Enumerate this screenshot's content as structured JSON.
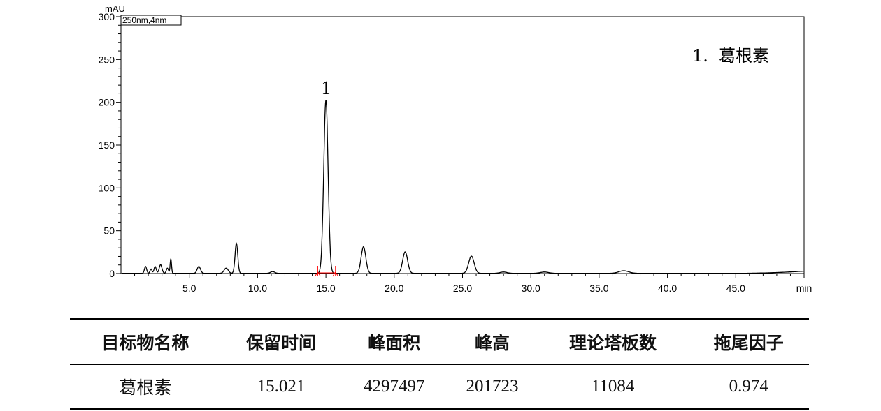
{
  "chart_data": {
    "type": "line",
    "ylabel": "mAU",
    "xlabel": "min",
    "channel": "250nm,4nm",
    "xlim": [
      0,
      50
    ],
    "ylim": [
      0,
      300
    ],
    "xticks": [
      5.0,
      10.0,
      15.0,
      20.0,
      25.0,
      30.0,
      35.0,
      40.0,
      45.0,
      50.0
    ],
    "xtick_labels": [
      "5.0",
      "10.0",
      "15.0",
      "20.0",
      "25.0",
      "30.0",
      "35.0",
      "40.0",
      "45.0",
      "min"
    ],
    "yticks": [
      0,
      50,
      100,
      150,
      200,
      250,
      300
    ],
    "ytick_labels": [
      "0",
      "50",
      "100",
      "150",
      "200",
      "250",
      "300"
    ],
    "grid": false,
    "legend_text": "1.  葛根素",
    "legend_position": "top-right",
    "peak_label": "1",
    "peak_label_rt": 15.0,
    "line_color": "#000000",
    "marker_color": "#ff0000",
    "integration_markers": [
      14.4,
      15.7
    ],
    "peaks": [
      {
        "rt": 1.8,
        "height": 8,
        "width": 0.08
      },
      {
        "rt": 2.2,
        "height": 5,
        "width": 0.07
      },
      {
        "rt": 2.5,
        "height": 8,
        "width": 0.08
      },
      {
        "rt": 2.9,
        "height": 10,
        "width": 0.1
      },
      {
        "rt": 3.4,
        "height": 6,
        "width": 0.08
      },
      {
        "rt": 3.65,
        "height": 17,
        "width": 0.05
      },
      {
        "rt": 5.7,
        "height": 8,
        "width": 0.12
      },
      {
        "rt": 7.7,
        "height": 6,
        "width": 0.15
      },
      {
        "rt": 8.45,
        "height": 35,
        "width": 0.1
      },
      {
        "rt": 11.1,
        "height": 2,
        "width": 0.15
      },
      {
        "rt": 15.0,
        "height": 202,
        "width": 0.16
      },
      {
        "rt": 17.75,
        "height": 31,
        "width": 0.17
      },
      {
        "rt": 20.8,
        "height": 25,
        "width": 0.18
      },
      {
        "rt": 25.65,
        "height": 20,
        "width": 0.2
      },
      {
        "rt": 28.0,
        "height": 1.5,
        "width": 0.25
      },
      {
        "rt": 31.0,
        "height": 1.5,
        "width": 0.3
      },
      {
        "rt": 36.8,
        "height": 3,
        "width": 0.35
      }
    ]
  },
  "table": {
    "headers": [
      "目标物名称",
      "保留时间",
      "峰面积",
      "峰高",
      "理论塔板数",
      "拖尾因子"
    ],
    "rows": [
      [
        "葛根素",
        "15.021",
        "4297497",
        "201723",
        "11084",
        "0.974"
      ]
    ]
  }
}
